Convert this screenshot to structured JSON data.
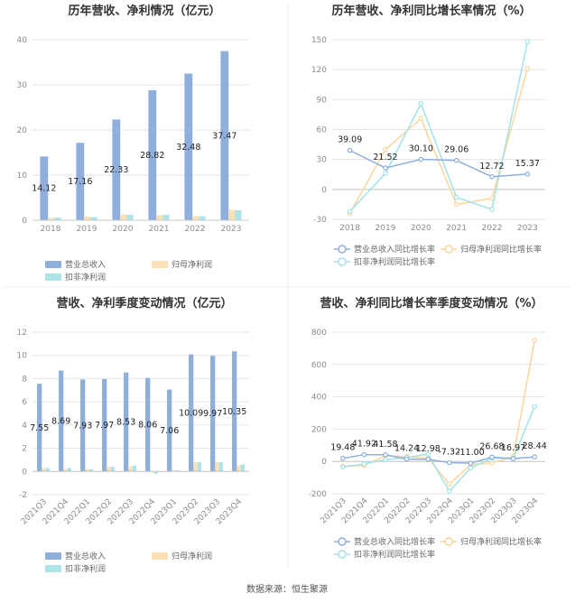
{
  "footer": "数据来源：恒生聚源",
  "colors": {
    "revenue": "#8eaedb",
    "net_profit": "#fbe1b4",
    "deducted_profit": "#aee3e8",
    "revenue_line": "#8eaedb",
    "net_line": "#fbd69a",
    "deducted_line": "#a3e3e8",
    "grid": "#e6e6e6",
    "axis": "#c8c8c8"
  },
  "chart_data": [
    {
      "type": "bar",
      "title": "历年营收、净利情况（亿元）",
      "categories": [
        "2018",
        "2019",
        "2020",
        "2021",
        "2022",
        "2023"
      ],
      "series": [
        {
          "name": "营业总收入",
          "values": [
            14.12,
            17.16,
            22.33,
            28.82,
            32.48,
            37.47
          ],
          "labels": [
            "14.12",
            "17.16",
            "22.33",
            "28.82",
            "32.48",
            "37.47"
          ]
        },
        {
          "name": "归母净利润",
          "values": [
            0.5,
            0.8,
            1.3,
            1.1,
            0.9,
            2.3
          ]
        },
        {
          "name": "扣非净利润",
          "values": [
            0.6,
            0.7,
            1.2,
            1.2,
            0.9,
            2.2
          ]
        }
      ],
      "ylim": [
        0,
        40
      ],
      "yticks": [
        0,
        10,
        20,
        30,
        40
      ],
      "grid": true,
      "legend": "bottom"
    },
    {
      "type": "line",
      "title": "历年营收、净利同比增长率情况（%）",
      "categories": [
        "2018",
        "2019",
        "2020",
        "2021",
        "2022",
        "2023"
      ],
      "series": [
        {
          "name": "营业总收入同比增长率",
          "values": [
            39.09,
            21.52,
            30.1,
            29.06,
            12.72,
            15.37
          ],
          "labels": [
            "39.09",
            "21.52",
            "30.10",
            "29.06",
            "12.72",
            "15.37"
          ]
        },
        {
          "name": "归母净利润同比增长率",
          "values": [
            -24,
            40,
            71,
            -15,
            -9,
            121
          ]
        },
        {
          "name": "扣非净利润同比增长率",
          "values": [
            -22,
            16,
            86,
            -8,
            -20,
            148
          ]
        }
      ],
      "ylim": [
        -30,
        150
      ],
      "yticks": [
        -30,
        0,
        30,
        60,
        90,
        120,
        150
      ],
      "grid": true,
      "legend": "bottom"
    },
    {
      "type": "bar",
      "title": "营收、净利季度变动情况（亿元）",
      "categories": [
        "2021Q3",
        "2021Q4",
        "2022Q1",
        "2022Q2",
        "2022Q3",
        "2022Q4",
        "2023Q1",
        "2023Q2",
        "2023Q3",
        "2023Q4"
      ],
      "series": [
        {
          "name": "营业总收入",
          "values": [
            7.55,
            8.69,
            7.93,
            7.97,
            8.53,
            8.06,
            7.06,
            10.09,
            9.97,
            10.35
          ],
          "labels": [
            "7.55",
            "8.69",
            "7.93",
            "7.97",
            "8.53",
            "8.06",
            "7.06",
            "10.09",
            "9.97",
            "10.35"
          ]
        },
        {
          "name": "归母净利润",
          "values": [
            0.3,
            0.2,
            0.2,
            0.4,
            0.4,
            -0.1,
            0.1,
            0.8,
            0.8,
            0.5
          ]
        },
        {
          "name": "扣非净利润",
          "values": [
            0.3,
            0.3,
            0.2,
            0.4,
            0.5,
            -0.2,
            0.1,
            0.8,
            0.8,
            0.6
          ]
        }
      ],
      "ylim": [
        -2,
        12
      ],
      "yticks": [
        -2,
        0,
        2,
        4,
        6,
        8,
        10,
        12
      ],
      "grid": true,
      "legend": "bottom"
    },
    {
      "type": "line",
      "title": "营收、净利同比增长率季度变动情况（%）",
      "categories": [
        "2021Q3",
        "2021Q4",
        "2022Q1",
        "2022Q2",
        "2022Q3",
        "2022Q4",
        "2023Q1",
        "2023Q2",
        "2023Q3",
        "2023Q4"
      ],
      "series": [
        {
          "name": "营业总收入同比增长率",
          "values": [
            19.48,
            41.92,
            41.58,
            14.24,
            12.98,
            -7.32,
            -11.0,
            26.68,
            16.97,
            28.44
          ],
          "labels": [
            "19.48",
            "41.92",
            "41.58",
            "14.24",
            "12.98",
            "-7.32",
            "-11.00",
            "26.68",
            "16.97",
            "28.44"
          ]
        },
        {
          "name": "归母净利润同比增长率",
          "values": [
            -30,
            -25,
            35,
            30,
            20,
            -140,
            -20,
            -10,
            30,
            750
          ]
        },
        {
          "name": "扣非净利润同比增长率",
          "values": [
            -35,
            -15,
            10,
            25,
            45,
            -185,
            -40,
            20,
            20,
            340
          ]
        }
      ],
      "ylim": [
        -200,
        800
      ],
      "yticks": [
        -200,
        0,
        200,
        400,
        600,
        800
      ],
      "grid": true,
      "legend": "bottom"
    }
  ]
}
